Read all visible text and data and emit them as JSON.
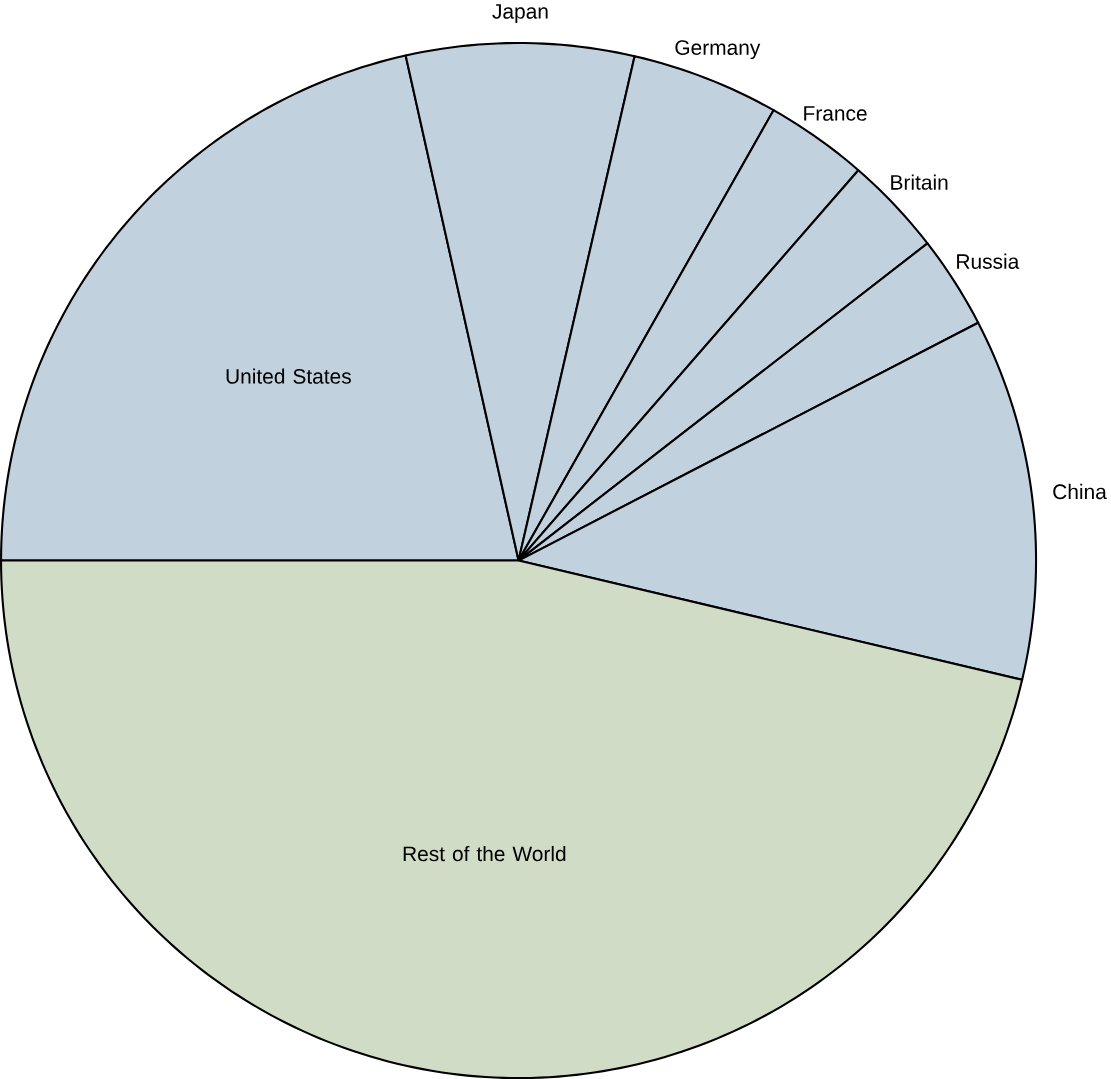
{
  "chart_data": {
    "type": "pie",
    "categories": [
      "United States",
      "Japan",
      "Germany",
      "France",
      "Britain",
      "Russia",
      "China",
      "Rest of the World"
    ],
    "values": [
      21.5,
      7.1,
      4.6,
      3.2,
      3.1,
      2.9,
      11.3,
      46.3
    ],
    "colors": [
      "#c1d1de",
      "#c1d1de",
      "#c1d1de",
      "#c1d1de",
      "#c1d1de",
      "#c1d1de",
      "#c1d1de",
      "#d1dcc6"
    ]
  }
}
